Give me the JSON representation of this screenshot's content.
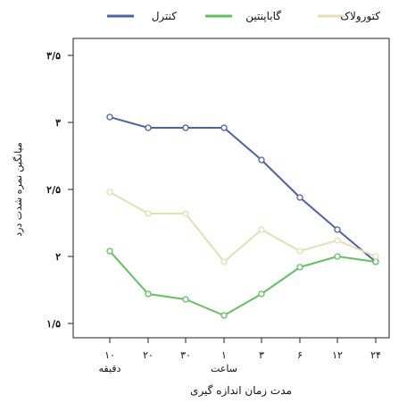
{
  "chart_data": {
    "type": "line",
    "title": "",
    "xlabel": "مدت زمان اندازه گیری",
    "ylabel": "میانگین نمره شدت درد",
    "ylim": [
      1.4,
      3.6
    ],
    "y_ticks": [
      {
        "value": 1.5,
        "label": "۱/۵"
      },
      {
        "value": 2.0,
        "label": "۲"
      },
      {
        "value": 2.5,
        "label": "۲/۵"
      },
      {
        "value": 3.0,
        "label": "۳"
      },
      {
        "value": 3.5,
        "label": "۳/۵"
      }
    ],
    "categories": [
      "۱۰",
      "۲۰",
      "۳۰",
      "۱",
      "۳",
      "۶",
      "۱۲",
      "۲۴"
    ],
    "category_sublabels": [
      {
        "index": 0,
        "text": "دقیقه"
      },
      {
        "index": 3,
        "text": "ساعت"
      }
    ],
    "legend_position": "top",
    "grid": false,
    "series": [
      {
        "name": "کنترل",
        "color": "#4a62a8",
        "values": [
          3.04,
          2.96,
          2.96,
          2.96,
          2.72,
          2.44,
          2.2,
          1.96
        ]
      },
      {
        "name": "گاباپنتین",
        "color": "#5ec45a",
        "values": [
          2.04,
          1.72,
          1.68,
          1.56,
          1.72,
          1.92,
          2.0,
          1.96
        ]
      },
      {
        "name": "کتورولاک",
        "color": "#e6deb0",
        "values": [
          2.48,
          2.32,
          2.32,
          1.96,
          2.2,
          2.04,
          2.12,
          2.0
        ]
      }
    ]
  }
}
